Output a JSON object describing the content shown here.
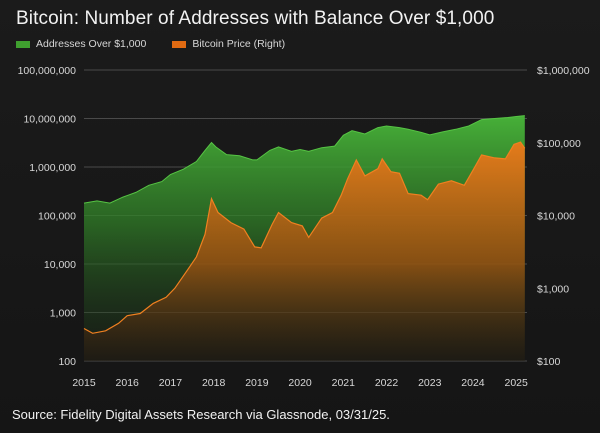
{
  "title": "Bitcoin: Number of Addresses with Balance Over $1,000",
  "source": "Source: Fidelity Digital Assets Research via Glassnode, 03/31/25.",
  "colors": {
    "addresses": "#3f9f2f",
    "price": "#e06a12",
    "grid": "#4a4a4a",
    "background": "#1a1a1a"
  },
  "chart_data": {
    "type": "area",
    "title": "Bitcoin: Number of Addresses with Balance Over $1,000",
    "x_ticks": [
      "2015",
      "2016",
      "2017",
      "2018",
      "2019",
      "2020",
      "2021",
      "2022",
      "2023",
      "2024",
      "2025"
    ],
    "y_left": {
      "scale": "log",
      "ticks": [
        "100,000,000",
        "10,000,000",
        "1,000,000",
        "100,000",
        "10,000",
        "1,000",
        "100"
      ],
      "range": [
        100,
        100000000
      ]
    },
    "y_right": {
      "scale": "log",
      "ticks": [
        "$1,000,000",
        "$100,000",
        "$10,000",
        "$1,000",
        "$100"
      ],
      "range": [
        100,
        1000000
      ]
    },
    "grid": true,
    "legend": "top-left",
    "series": [
      {
        "name": "Addresses Over $1,000",
        "axis": "left",
        "x": [
          2015.0,
          2015.3,
          2015.6,
          2015.9,
          2016.2,
          2016.5,
          2016.8,
          2017.0,
          2017.3,
          2017.6,
          2017.8,
          2017.95,
          2018.05,
          2018.3,
          2018.6,
          2018.9,
          2019.0,
          2019.3,
          2019.5,
          2019.8,
          2020.0,
          2020.2,
          2020.5,
          2020.8,
          2021.0,
          2021.2,
          2021.5,
          2021.8,
          2022.0,
          2022.3,
          2022.5,
          2022.8,
          2023.0,
          2023.3,
          2023.6,
          2023.9,
          2024.2,
          2024.5,
          2024.8,
          2025.0,
          2025.2
        ],
        "values": [
          180000,
          200000,
          180000,
          240000,
          300000,
          420000,
          500000,
          700000,
          900000,
          1300000,
          2200000,
          3200000,
          2600000,
          1800000,
          1700000,
          1400000,
          1400000,
          2200000,
          2600000,
          2100000,
          2300000,
          2100000,
          2500000,
          2700000,
          4500000,
          5600000,
          4800000,
          6500000,
          7000000,
          6500000,
          6000000,
          5200000,
          4600000,
          5300000,
          6000000,
          7000000,
          9500000,
          10000000,
          10500000,
          11000000,
          11500000
        ]
      },
      {
        "name": "Bitcoin Price (Right)",
        "axis": "right",
        "x": [
          2015.0,
          2015.2,
          2015.5,
          2015.8,
          2016.0,
          2016.3,
          2016.6,
          2016.9,
          2017.1,
          2017.4,
          2017.6,
          2017.8,
          2017.95,
          2018.1,
          2018.4,
          2018.7,
          2018.95,
          2019.1,
          2019.35,
          2019.5,
          2019.8,
          2020.05,
          2020.2,
          2020.5,
          2020.75,
          2020.95,
          2021.1,
          2021.3,
          2021.5,
          2021.8,
          2021.9,
          2022.1,
          2022.3,
          2022.5,
          2022.8,
          2022.95,
          2023.2,
          2023.5,
          2023.8,
          2024.0,
          2024.2,
          2024.5,
          2024.75,
          2024.95,
          2025.1,
          2025.2
        ],
        "values": [
          280,
          240,
          260,
          330,
          420,
          450,
          620,
          750,
          1000,
          1800,
          2700,
          5500,
          17000,
          11000,
          8000,
          6500,
          3700,
          3600,
          7500,
          11000,
          8000,
          7200,
          5000,
          9200,
          11000,
          19000,
          32000,
          58000,
          35000,
          44000,
          60000,
          40000,
          38000,
          20000,
          19000,
          16500,
          27000,
          30000,
          26000,
          42000,
          68000,
          62000,
          60000,
          95000,
          102000,
          84000
        ]
      }
    ]
  }
}
